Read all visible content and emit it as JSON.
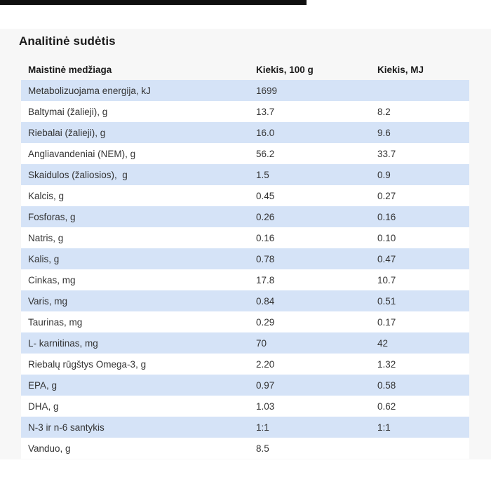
{
  "page": {
    "background": "#ffffff",
    "section_background": "#f7f7f7",
    "top_bar_color": "#101010",
    "row_color_odd": "#d5e3f7",
    "row_color_even": "#ffffff"
  },
  "section": {
    "title": "Analitinė sudėtis"
  },
  "table": {
    "columns": [
      "Maistinė medžiaga",
      "Kiekis, 100 g",
      "Kiekis, MJ"
    ],
    "rows": [
      [
        "Metabolizuojama energija, kJ",
        "1699",
        ""
      ],
      [
        "Baltymai (žalieji), g",
        "13.7",
        "8.2"
      ],
      [
        "Riebalai (žalieji), g",
        "16.0",
        "9.6"
      ],
      [
        "Angliavandeniai (NEM), g",
        "56.2",
        "33.7"
      ],
      [
        "Skaidulos (žaliosios),  g",
        "1.5",
        "0.9"
      ],
      [
        "Kalcis, g",
        "0.45",
        "0.27"
      ],
      [
        "Fosforas, g",
        "0.26",
        "0.16"
      ],
      [
        "Natris, g",
        "0.16",
        "0.10"
      ],
      [
        "Kalis, g",
        "0.78",
        "0.47"
      ],
      [
        "Cinkas, mg",
        "17.8",
        "10.7"
      ],
      [
        "Varis, mg",
        "0.84",
        "0.51"
      ],
      [
        "Taurinas, mg",
        "0.29",
        "0.17"
      ],
      [
        "L- karnitinas, mg",
        "70",
        "42"
      ],
      [
        "Riebalų rūgštys Omega-3, g",
        "2.20",
        "1.32"
      ],
      [
        "EPA, g",
        "0.97",
        "0.58"
      ],
      [
        "DHA, g",
        "1.03",
        "0.62"
      ],
      [
        "N-3 ir n-6 santykis",
        "1:1",
        "1:1"
      ],
      [
        "Vanduo, g",
        "8.5",
        ""
      ]
    ]
  }
}
